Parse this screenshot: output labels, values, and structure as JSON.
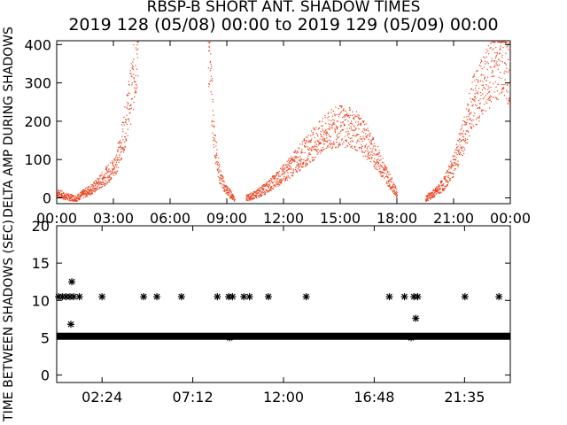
{
  "title_line1": "RBSP-B SHORT ANT. SHADOW TIMES",
  "title_line2": "2019 128 (05/08) 00:00 to 2019 129 (05/09) 00:00",
  "chart_data": [
    {
      "type": "scatter",
      "ylabel": "DELTA AMP DURING SHADOWS",
      "xlim": [
        0,
        24
      ],
      "ylim": [
        -15,
        410
      ],
      "yticks": [
        "0",
        "100",
        "200",
        "300",
        "400"
      ],
      "ytick_values": [
        0,
        100,
        200,
        300,
        400
      ],
      "xticks": [
        "00:00",
        "03:00",
        "06:00",
        "09:00",
        "12:00",
        "15:00",
        "18:00",
        "21:00",
        "00:00"
      ],
      "xtick_values": [
        0,
        3,
        6,
        9,
        12,
        15,
        18,
        21,
        24
      ],
      "color": "#e8401c",
      "series": [
        {
          "segment": "pass-1",
          "x": [
            0.0,
            0.4,
            1.0,
            1.5,
            2.0,
            2.5,
            3.0,
            3.3,
            3.6,
            4.0,
            4.3
          ],
          "y": [
            15,
            5,
            0,
            15,
            30,
            55,
            80,
            120,
            190,
            300,
            400
          ]
        },
        {
          "segment": "pass-2",
          "x": [
            8.0,
            8.3,
            8.6,
            8.9,
            9.2,
            9.4
          ],
          "y": [
            400,
            160,
            60,
            25,
            10,
            0
          ]
        },
        {
          "segment": "pass-3",
          "x": [
            10.0,
            10.5,
            11.0,
            11.5,
            12.0,
            12.5,
            13.0,
            13.5,
            14.0,
            14.5,
            15.0,
            15.5,
            16.0,
            16.5,
            17.0,
            17.5,
            18.0
          ],
          "y": [
            0,
            10,
            25,
            45,
            65,
            90,
            115,
            140,
            160,
            180,
            190,
            185,
            170,
            140,
            100,
            55,
            10
          ]
        },
        {
          "segment": "pass-4",
          "x": [
            19.5,
            20.0,
            20.5,
            21.0,
            21.5,
            22.0,
            22.5,
            23.0,
            23.5,
            24.0
          ],
          "y": [
            0,
            15,
            40,
            90,
            160,
            250,
            290,
            330,
            360,
            330
          ]
        }
      ]
    },
    {
      "type": "scatter",
      "ylabel": "TIME BETWEEN SHADOWS (SEC)",
      "xlim": [
        0,
        24
      ],
      "ylim": [
        -1,
        20
      ],
      "yticks": [
        "0",
        "5",
        "10",
        "15",
        "20"
      ],
      "ytick_values": [
        0,
        5,
        10,
        15,
        20
      ],
      "xticks": [
        "02:24",
        "07:12",
        "12:00",
        "16:48",
        "21:35"
      ],
      "xtick_values": [
        2.4,
        7.2,
        12.0,
        16.8,
        21.58
      ],
      "marker": "*",
      "color": "#000000",
      "baseline": {
        "y": 5.2,
        "x_start": 0.0,
        "x_end": 24.0
      },
      "points": {
        "x": [
          0.1,
          0.3,
          0.5,
          0.7,
          0.9,
          1.2,
          2.4,
          4.6,
          5.3,
          6.6,
          8.5,
          9.1,
          9.3,
          9.9,
          10.2,
          11.2,
          13.2,
          17.6,
          18.4,
          18.9,
          19.1,
          21.6,
          23.4,
          0.8,
          0.75,
          19.0,
          9.15,
          18.75
        ],
        "y": [
          10.5,
          10.5,
          10.5,
          10.5,
          10.5,
          10.5,
          10.5,
          10.5,
          10.5,
          10.5,
          10.5,
          10.5,
          10.5,
          10.5,
          10.5,
          10.5,
          10.5,
          10.5,
          10.5,
          10.5,
          10.5,
          10.5,
          10.5,
          12.5,
          6.8,
          7.6,
          5.0,
          5.0
        ]
      }
    }
  ]
}
